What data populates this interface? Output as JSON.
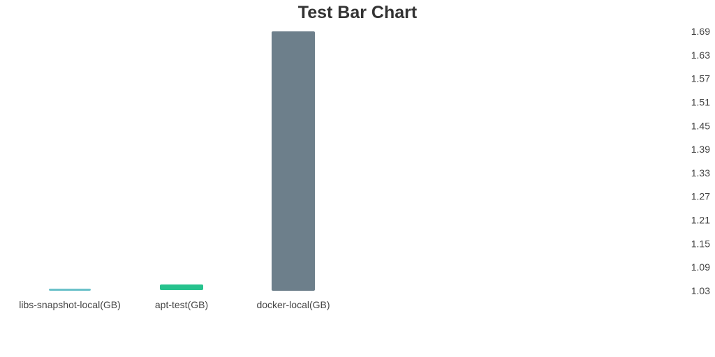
{
  "chart_data": {
    "type": "bar",
    "title": "Test Bar Chart",
    "categories": [
      "libs-snapshot-local(GB)",
      "apt-test(GB)",
      "docker-local(GB)"
    ],
    "values": [
      1.025,
      1.04,
      1.69
    ],
    "colors": [
      "#6ac1c9",
      "#26c28d",
      "#6d7f8b"
    ],
    "xlabel": "",
    "ylabel": "",
    "ylim": [
      1.03,
      1.69
    ],
    "yticks": [
      "1.69",
      "1.63",
      "1.57",
      "1.51",
      "1.45",
      "1.39",
      "1.33",
      "1.27",
      "1.21",
      "1.15",
      "1.09",
      "1.03"
    ],
    "y_axis_position": "right",
    "grid": false,
    "legend": "none"
  }
}
